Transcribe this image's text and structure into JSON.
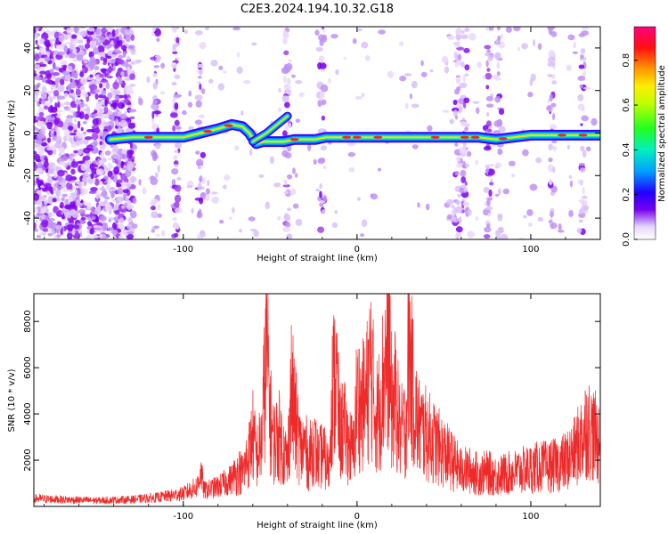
{
  "title": "C2E3.2024.194.10.32.G18",
  "chart_data": [
    {
      "type": "heatmap",
      "xlabel": "Height of straight line (km)",
      "ylabel": "Frequency (Hz)",
      "xlim": [
        -186,
        140
      ],
      "ylim": [
        -50,
        50
      ],
      "xticks": [
        -100,
        0,
        100
      ],
      "yticks": [
        -40,
        -20,
        0,
        20,
        40
      ],
      "colorbar": {
        "label": "Normalized spectral amplitude",
        "range": [
          0,
          0.95
        ],
        "ticks": [
          0.0,
          0.2,
          0.4,
          0.6,
          0.8
        ]
      },
      "ridge": {
        "x": [
          -142,
          -130,
          -120,
          -110,
          -100,
          -90,
          -80,
          -72,
          -66,
          -62,
          -58,
          -54,
          -48,
          -42,
          -36,
          -30,
          -24,
          -18,
          -12,
          -6,
          0,
          10,
          20,
          30,
          40,
          50,
          60,
          70,
          80,
          90,
          100,
          110,
          120,
          130,
          140
        ],
        "frequency": [
          -3,
          -2,
          -2,
          -2,
          -2,
          0,
          2,
          4,
          3,
          0,
          -5,
          -4,
          -4,
          -4,
          -3,
          -3,
          -3,
          -2,
          -2,
          -2,
          -2,
          -2,
          -2,
          -2,
          -2,
          -2,
          -2,
          -2,
          -3,
          -2,
          -1,
          -1,
          -1,
          -1,
          -1
        ]
      },
      "branch": {
        "x": [
          -60,
          -52,
          -46,
          -40
        ],
        "frequency": [
          -4,
          0,
          4,
          8
        ]
      }
    },
    {
      "type": "line",
      "xlabel": "Height of straight line (km)",
      "ylabel": "SNR (10 * v/v)",
      "xlim": [
        -186,
        140
      ],
      "ylim": [
        0,
        9200
      ],
      "xticks": [
        -100,
        0,
        100
      ],
      "yticks": [
        2000,
        4000,
        6000,
        8000
      ],
      "series": [
        {
          "color": "#ee2a2a",
          "x": [
            -186,
            -170,
            -150,
            -130,
            -115,
            -100,
            -92,
            -90,
            -88,
            -80,
            -72,
            -68,
            -66,
            -62,
            -60,
            -58,
            -55,
            -52,
            -50,
            -48,
            -45,
            -42,
            -40,
            -38,
            -35,
            -32,
            -30,
            -28,
            -25,
            -22,
            -20,
            -16,
            -15,
            -12,
            -10,
            -8,
            -5,
            -2,
            0,
            2,
            5,
            8,
            10,
            12,
            15,
            18,
            20,
            22,
            25,
            28,
            30,
            32,
            35,
            40,
            45,
            50,
            55,
            60,
            65,
            70,
            75,
            80,
            85,
            90,
            95,
            100,
            105,
            110,
            115,
            120,
            125,
            128,
            132,
            136,
            140
          ],
          "y": [
            400,
            350,
            300,
            350,
            450,
            650,
            1000,
            1800,
            800,
            1000,
            1400,
            2000,
            1800,
            3000,
            4000,
            2800,
            3500,
            9100,
            5000,
            3500,
            4000,
            3000,
            2500,
            6500,
            4500,
            3000,
            3500,
            2500,
            3500,
            2500,
            3000,
            2000,
            5800,
            7500,
            4000,
            4500,
            3500,
            3000,
            6200,
            5500,
            5800,
            8000,
            5500,
            5000,
            7000,
            9000,
            5500,
            6000,
            4000,
            4500,
            9100,
            6500,
            4500,
            4000,
            3500,
            3000,
            2500,
            2000,
            2000,
            1800,
            1900,
            1700,
            1800,
            1900,
            2000,
            2100,
            2200,
            2200,
            2300,
            2500,
            3000,
            3500,
            4500,
            4000,
            3500
          ]
        }
      ]
    }
  ]
}
